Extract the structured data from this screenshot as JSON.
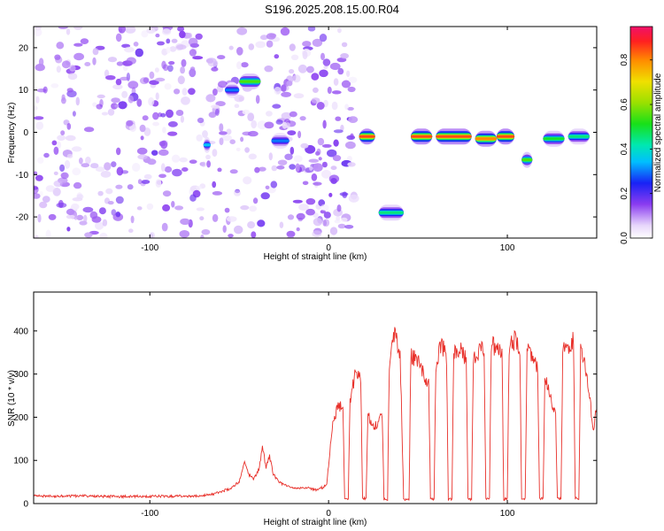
{
  "title": "S196.2025.208.15.00.R04",
  "colors": {
    "snr_line": "#e8302a",
    "frame": "#000000",
    "background": "#ffffff"
  },
  "chart_data": [
    {
      "type": "heatmap",
      "xlabel": "Height of straight line (km)",
      "ylabel": "Frequency (Hz)",
      "xlim": [
        -165,
        150
      ],
      "ylim": [
        -25,
        25
      ],
      "x_ticks": [
        -100,
        0,
        100
      ],
      "x_tick_labels": [
        "-100",
        "0",
        "100"
      ],
      "y_ticks": [
        -20,
        -10,
        0,
        10,
        20
      ],
      "y_tick_labels": [
        "-20",
        "-10",
        "0",
        "10",
        "20"
      ],
      "colorbar": {
        "label": "Normalized spectral amplitude",
        "range": [
          0,
          0.95
        ],
        "ticks": [
          0.0,
          0.2,
          0.4,
          0.6,
          0.8
        ],
        "tick_labels": [
          "0.0",
          "0.2",
          "0.4",
          "0.6",
          "0.8"
        ]
      },
      "noise_region": {
        "x": [
          -165,
          15
        ],
        "amplitude": 0.1
      },
      "features": [
        {
          "x": [
            -70,
            -66
          ],
          "y": -3,
          "amplitude": 0.35
        },
        {
          "x": [
            -58,
            -50
          ],
          "y": 10,
          "amplitude": 0.3
        },
        {
          "x": [
            -50,
            -38
          ],
          "y": 12,
          "amplitude": 0.55
        },
        {
          "x": [
            -32,
            -22
          ],
          "y": -2,
          "amplitude": 0.3
        },
        {
          "x": [
            17,
            26
          ],
          "y": -1,
          "amplitude": 0.85
        },
        {
          "x": [
            28,
            42
          ],
          "y": -19,
          "amplitude": 0.45
        },
        {
          "x": [
            46,
            58
          ],
          "y": -1,
          "amplitude": 0.85
        },
        {
          "x": [
            60,
            80
          ],
          "y": -1,
          "amplitude": 0.85
        },
        {
          "x": [
            82,
            94
          ],
          "y": -1.5,
          "amplitude": 0.8
        },
        {
          "x": [
            94,
            104
          ],
          "y": -1,
          "amplitude": 0.85
        },
        {
          "x": [
            108,
            114
          ],
          "y": -6.5,
          "amplitude": 0.55
        },
        {
          "x": [
            120,
            132
          ],
          "y": -1.5,
          "amplitude": 0.5
        },
        {
          "x": [
            134,
            146
          ],
          "y": -1,
          "amplitude": 0.45
        }
      ]
    },
    {
      "type": "line",
      "xlabel": "Height of straight line (km)",
      "ylabel": "SNR (10 * v/v)",
      "xlim": [
        -165,
        150
      ],
      "ylim": [
        0,
        490
      ],
      "x_ticks": [
        -100,
        0,
        100
      ],
      "x_tick_labels": [
        "-100",
        "0",
        "100"
      ],
      "y_ticks": [
        0,
        100,
        200,
        300,
        400
      ],
      "y_tick_labels": [
        "0",
        "100",
        "200",
        "300",
        "400"
      ],
      "series": [
        {
          "values": [
            [
              -165,
              18
            ],
            [
              -150,
              17
            ],
            [
              -135,
              18
            ],
            [
              -120,
              16
            ],
            [
              -105,
              17
            ],
            [
              -90,
              17
            ],
            [
              -75,
              18
            ],
            [
              -66,
              20
            ],
            [
              -60,
              28
            ],
            [
              -55,
              35
            ],
            [
              -50,
              50
            ],
            [
              -47,
              95
            ],
            [
              -45,
              70
            ],
            [
              -42,
              55
            ],
            [
              -39,
              80
            ],
            [
              -37,
              130
            ],
            [
              -35,
              85
            ],
            [
              -33,
              110
            ],
            [
              -31,
              70
            ],
            [
              -28,
              50
            ],
            [
              -24,
              42
            ],
            [
              -18,
              35
            ],
            [
              -12,
              36
            ],
            [
              -7,
              32
            ],
            [
              -3,
              38
            ],
            [
              -1,
              45
            ],
            [
              2,
              180
            ],
            [
              5,
              220
            ],
            [
              8,
              230
            ],
            [
              9,
              10
            ],
            [
              11,
              10
            ],
            [
              12,
              240
            ],
            [
              15,
              300
            ],
            [
              18,
              290
            ],
            [
              19,
              12
            ],
            [
              21,
              12
            ],
            [
              22,
              210
            ],
            [
              25,
              175
            ],
            [
              28,
              190
            ],
            [
              30,
              210
            ],
            [
              31,
              10
            ],
            [
              33,
              10
            ],
            [
              34,
              330
            ],
            [
              37,
              390
            ],
            [
              40,
              350
            ],
            [
              42,
              10
            ],
            [
              45,
              10
            ],
            [
              46,
              340
            ],
            [
              50,
              330
            ],
            [
              53,
              300
            ],
            [
              56,
              280
            ],
            [
              57,
              10
            ],
            [
              59,
              10
            ],
            [
              60,
              320
            ],
            [
              63,
              370
            ],
            [
              66,
              340
            ],
            [
              67,
              10
            ],
            [
              69,
              10
            ],
            [
              70,
              350
            ],
            [
              74,
              360
            ],
            [
              77,
              330
            ],
            [
              78,
              10
            ],
            [
              80,
              10
            ],
            [
              81,
              340
            ],
            [
              84,
              350
            ],
            [
              87,
              360
            ],
            [
              88,
              10
            ],
            [
              90,
              10
            ],
            [
              91,
              370
            ],
            [
              94,
              360
            ],
            [
              97,
              350
            ],
            [
              98,
              10
            ],
            [
              100,
              10
            ],
            [
              101,
              360
            ],
            [
              104,
              380
            ],
            [
              107,
              350
            ],
            [
              108,
              12
            ],
            [
              110,
              12
            ],
            [
              111,
              360
            ],
            [
              114,
              340
            ],
            [
              117,
              310
            ],
            [
              118,
              12
            ],
            [
              120,
              12
            ],
            [
              121,
              300
            ],
            [
              124,
              250
            ],
            [
              127,
              200
            ],
            [
              128,
              12
            ],
            [
              130,
              12
            ],
            [
              131,
              360
            ],
            [
              134,
              350
            ],
            [
              137,
              380
            ],
            [
              138,
              12
            ],
            [
              140,
              12
            ],
            [
              141,
              350
            ],
            [
              144,
              310
            ],
            [
              146,
              250
            ],
            [
              148,
              170
            ],
            [
              150,
              220
            ]
          ]
        }
      ]
    }
  ]
}
